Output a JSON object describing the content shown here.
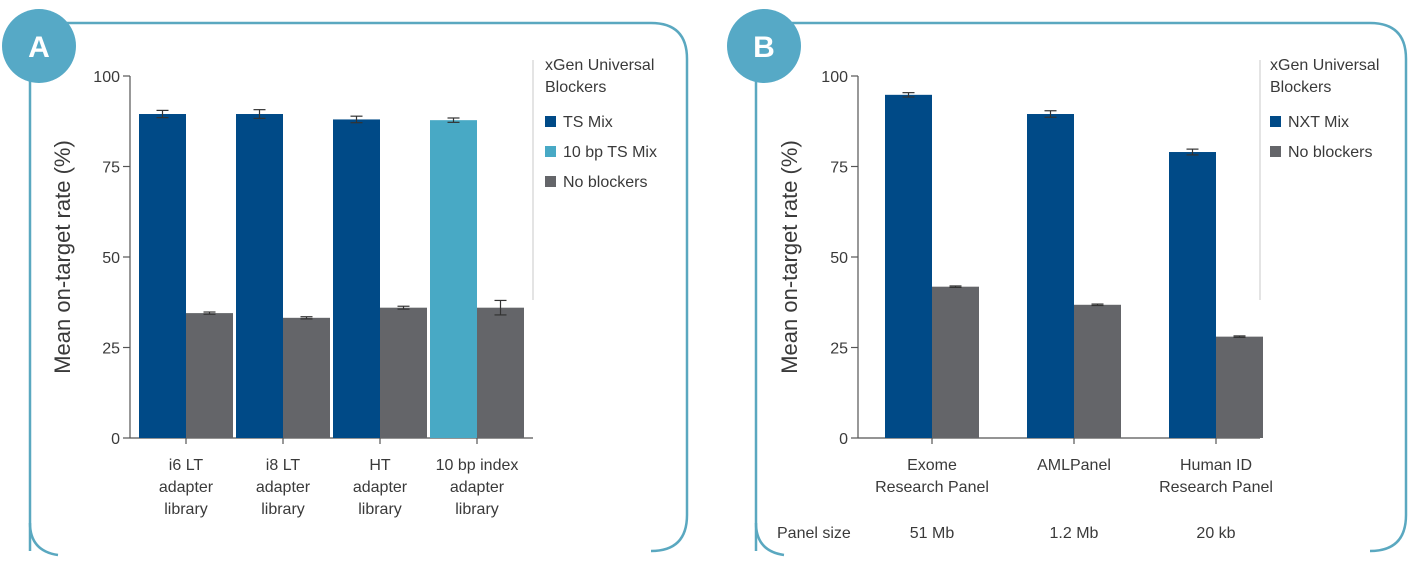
{
  "colors": {
    "frame": "#5aa8c0",
    "badge": "#56a9c6",
    "navy": "#004a87",
    "teal": "#48a9c5",
    "gray": "#646569",
    "axis": "#555555",
    "text": "#3a3a3a"
  },
  "chart_data": [
    {
      "panel_label": "A",
      "type": "bar",
      "ylabel": "Mean on-target rate (%)",
      "ylim": [
        0,
        100
      ],
      "yticks": [
        0,
        25,
        50,
        75,
        100
      ],
      "categories": [
        [
          "i6 LT",
          "adapter",
          "library"
        ],
        [
          "i8 LT",
          "adapter",
          "library"
        ],
        [
          "HT",
          "adapter",
          "library"
        ],
        [
          "10 bp index",
          "adapter",
          "library"
        ]
      ],
      "legend_title": [
        "xGen Universal",
        "Blockers"
      ],
      "legend": [
        {
          "label": "TS Mix",
          "color": "#004a87"
        },
        {
          "label": "10 bp TS Mix",
          "color": "#48a9c5"
        },
        {
          "label": "No blockers",
          "color": "#646569"
        }
      ],
      "series": [
        {
          "name": "Blocker",
          "values": [
            89.5,
            89.5,
            88,
            87.8
          ],
          "errors": [
            1.0,
            1.2,
            0.9,
            0.6
          ],
          "colors": [
            "#004a87",
            "#004a87",
            "#004a87",
            "#48a9c5"
          ]
        },
        {
          "name": "No blockers",
          "values": [
            34.5,
            33.2,
            36,
            36
          ],
          "errors": [
            0.3,
            0.3,
            0.4,
            2.0
          ],
          "colors": [
            "#646569",
            "#646569",
            "#646569",
            "#646569"
          ]
        }
      ],
      "footer": null
    },
    {
      "panel_label": "B",
      "type": "bar",
      "ylabel": "Mean on-target rate (%)",
      "ylim": [
        0,
        100
      ],
      "yticks": [
        0,
        25,
        50,
        75,
        100
      ],
      "categories": [
        [
          "Exome",
          "Research Panel"
        ],
        [
          "AMLPanel"
        ],
        [
          "Human ID",
          "Research Panel"
        ]
      ],
      "legend_title": [
        "xGen Universal",
        "Blockers"
      ],
      "legend": [
        {
          "label": "NXT Mix",
          "color": "#004a87"
        },
        {
          "label": "No blockers",
          "color": "#646569"
        }
      ],
      "series": [
        {
          "name": "NXT Mix",
          "values": [
            94.8,
            89.5,
            79
          ],
          "errors": [
            0.6,
            0.9,
            0.8
          ],
          "colors": [
            "#004a87",
            "#004a87",
            "#004a87"
          ]
        },
        {
          "name": "No blockers",
          "values": [
            41.8,
            36.8,
            28
          ],
          "errors": [
            0.2,
            0.2,
            0.2
          ],
          "colors": [
            "#646569",
            "#646569",
            "#646569"
          ]
        }
      ],
      "footer": {
        "label": "Panel size",
        "values": [
          "51 Mb",
          "1.2 Mb",
          "20 kb"
        ]
      }
    }
  ]
}
